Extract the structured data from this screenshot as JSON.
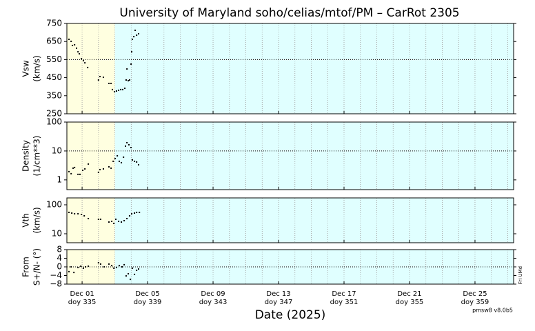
{
  "title": "University of Maryland  soho/celias/mtof/PM – CarRot 2305",
  "xlabel": "Date (2025)",
  "footer": "pmsw8 v8.0b5",
  "side_note": "Fri UMd",
  "xaxis": {
    "xlim": [
      334.07,
      361.36
    ],
    "xticks": [
      {
        "value": 335,
        "label": "Dec 01",
        "doy": "doy 335"
      },
      {
        "value": 339,
        "label": "Dec 05",
        "doy": "doy 339"
      },
      {
        "value": 343,
        "label": "Dec 09",
        "doy": "doy 343"
      },
      {
        "value": 347,
        "label": "Dec 13",
        "doy": "doy 347"
      },
      {
        "value": 351,
        "label": "Dec 17",
        "doy": "doy 351"
      },
      {
        "value": 355,
        "label": "Dec 21",
        "doy": "doy 355"
      },
      {
        "value": 359,
        "label": "Dec 25",
        "doy": "doy 359"
      }
    ],
    "grid_days": [
      335,
      336,
      337,
      338,
      339,
      340,
      341,
      342,
      343,
      344,
      345,
      346,
      347,
      348,
      349,
      350,
      351,
      352,
      353,
      354,
      355,
      356,
      357,
      358,
      359,
      360,
      361
    ],
    "regions": [
      {
        "start": 334.07,
        "end": 337,
        "color": "#ffffe0"
      },
      {
        "start": 337,
        "end": 361.36,
        "color": "#e0ffff"
      }
    ]
  },
  "chart_data": [
    {
      "type": "scatter",
      "ylabel": [
        "Vsw",
        "(km/s)"
      ],
      "color": "#000000",
      "log": false,
      "ylim": [
        250,
        750
      ],
      "yticks": [
        250,
        350,
        450,
        550,
        650,
        750
      ],
      "reference_line": 550,
      "x": [
        334.2,
        334.33,
        334.41,
        334.54,
        334.66,
        334.75,
        334.83,
        334.96,
        335.08,
        335.17,
        335.34,
        336.0,
        336.09,
        336.3,
        336.64,
        336.77,
        336.85,
        336.98,
        337.1,
        337.23,
        337.36,
        337.48,
        337.61,
        337.69,
        337.74,
        337.82,
        337.9,
        337.99,
        338.03,
        338.07,
        338.16,
        338.24,
        338.33,
        338.45
      ],
      "values": [
        662,
        651,
        628,
        632,
        613,
        593,
        582,
        555,
        544,
        532,
        506,
        437,
        456,
        452,
        418,
        418,
        384,
        372,
        376,
        380,
        384,
        384,
        391,
        437,
        498,
        433,
        437,
        525,
        593,
        662,
        677,
        712,
        685,
        693
      ]
    },
    {
      "type": "scatter",
      "ylabel": [
        "Density",
        "(1/cm**3)"
      ],
      "color": "#000000",
      "log": true,
      "ylim": [
        0.46,
        100
      ],
      "yticks": [
        1,
        10,
        100
      ],
      "reference_line": 10,
      "x": [
        334.2,
        334.33,
        334.45,
        334.54,
        334.75,
        334.87,
        335.04,
        335.17,
        335.38,
        336.0,
        336.09,
        336.3,
        336.64,
        336.77,
        336.9,
        337.02,
        337.15,
        337.27,
        337.4,
        337.53,
        337.65,
        337.74,
        337.86,
        337.99,
        338.07,
        338.2,
        338.33,
        338.45
      ],
      "values": [
        1.93,
        1.64,
        2.54,
        2.68,
        1.55,
        1.55,
        2.15,
        2.4,
        3.53,
        1.83,
        2.27,
        2.4,
        2.83,
        2.54,
        4.39,
        5.46,
        6.81,
        4.39,
        3.94,
        6.11,
        14.7,
        19.3,
        16.4,
        13.1,
        4.9,
        4.39,
        4.16,
        3.34
      ]
    },
    {
      "type": "scatter",
      "ylabel": [
        "Vth",
        "(km/s)"
      ],
      "color": "#000000",
      "log": true,
      "ylim": [
        4.9,
        173
      ],
      "yticks": [
        10,
        100
      ],
      "x": [
        334.2,
        334.37,
        334.54,
        334.75,
        334.96,
        335.13,
        335.38,
        336.0,
        336.13,
        336.64,
        336.81,
        336.94,
        337.06,
        337.23,
        337.4,
        337.57,
        337.74,
        337.9,
        338.03,
        338.2,
        338.33,
        338.5
      ],
      "values": [
        54.7,
        51.8,
        49.0,
        49.0,
        46.4,
        41.6,
        33.4,
        31.6,
        31.6,
        25.4,
        26.8,
        22.8,
        31.6,
        26.8,
        25.4,
        28.3,
        33.4,
        41.6,
        49.0,
        51.8,
        54.7,
        54.7
      ]
    },
    {
      "type": "scatter",
      "ylabel": [
        "From",
        "S+/N- (°)"
      ],
      "color": "#000000",
      "log": false,
      "ylim": [
        -8,
        8
      ],
      "yticks": [
        8,
        4,
        0,
        {
          "value": -4,
          "label": "−4"
        },
        {
          "value": -8,
          "label": "−8"
        }
      ],
      "reference_line": 0,
      "x": [
        334.2,
        334.33,
        334.5,
        334.75,
        334.92,
        335.08,
        335.21,
        335.38,
        336.0,
        336.13,
        336.35,
        336.64,
        336.81,
        336.94,
        337.1,
        337.27,
        337.44,
        337.57,
        337.69,
        337.82,
        337.95,
        338.07,
        338.2,
        338.33,
        338.45
      ],
      "values": [
        -2.2,
        0,
        -2.6,
        -0.3,
        0.3,
        -0.6,
        0,
        0.3,
        1.9,
        1.3,
        0,
        1.3,
        0.6,
        -0.6,
        -0.3,
        0.6,
        0,
        1.0,
        -4.2,
        -3.2,
        -5.8,
        -0.6,
        -3.5,
        -1.6,
        -1.0
      ]
    }
  ]
}
